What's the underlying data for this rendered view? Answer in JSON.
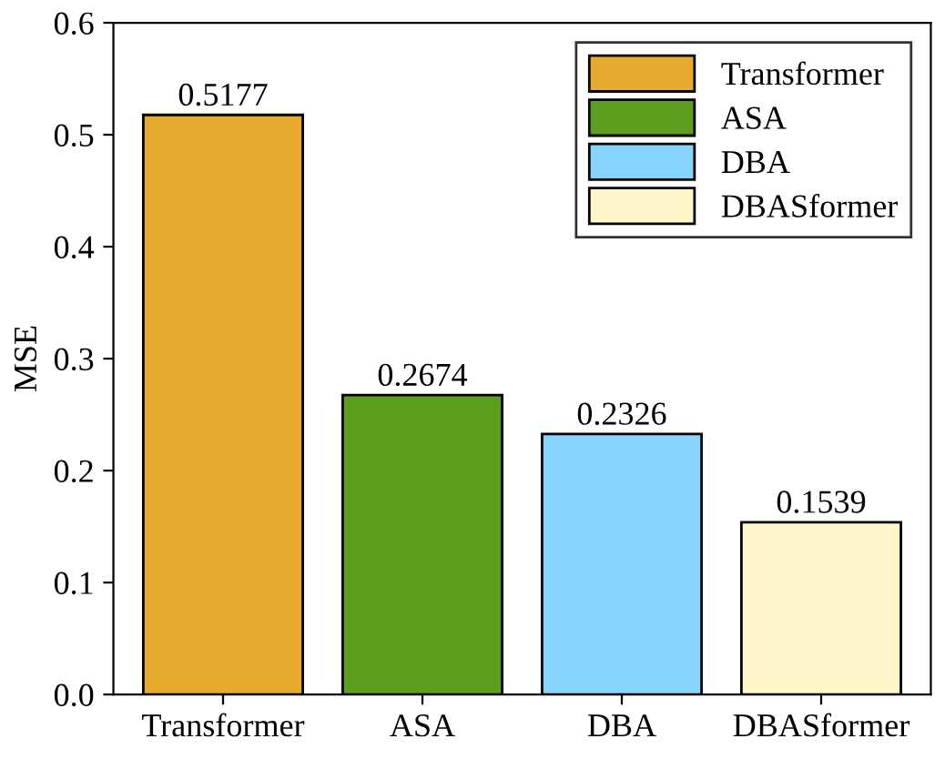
{
  "chart_data": {
    "type": "bar",
    "ylabel": "MSE",
    "categories": [
      "Transformer",
      "ASA",
      "DBA",
      "DBASformer"
    ],
    "series": [
      {
        "name": "Transformer",
        "color": "#e8aa2c",
        "values": [
          0.5177,
          null,
          null,
          null
        ]
      },
      {
        "name": "ASA",
        "color": "#5c9f1f",
        "values": [
          null,
          0.2674,
          null,
          null
        ]
      },
      {
        "name": "DBA",
        "color": "#86d3fb",
        "values": [
          null,
          null,
          0.2326,
          null
        ]
      },
      {
        "name": "DBASformer",
        "color": "#fff6c9",
        "values": [
          null,
          null,
          null,
          0.1539
        ]
      }
    ],
    "ylim": [
      0,
      0.6
    ],
    "yticks": [
      {
        "value": 0,
        "label": "0.0"
      },
      {
        "value": 0.1,
        "label": "0.1"
      },
      {
        "value": 0.2,
        "label": "0.2"
      },
      {
        "value": 0.3,
        "label": "0.3"
      },
      {
        "value": 0.4,
        "label": "0.4"
      },
      {
        "value": 0.5,
        "label": "0.5"
      },
      {
        "value": 0.6,
        "label": "0.6"
      }
    ],
    "data_labels": true,
    "legend": "top right"
  }
}
